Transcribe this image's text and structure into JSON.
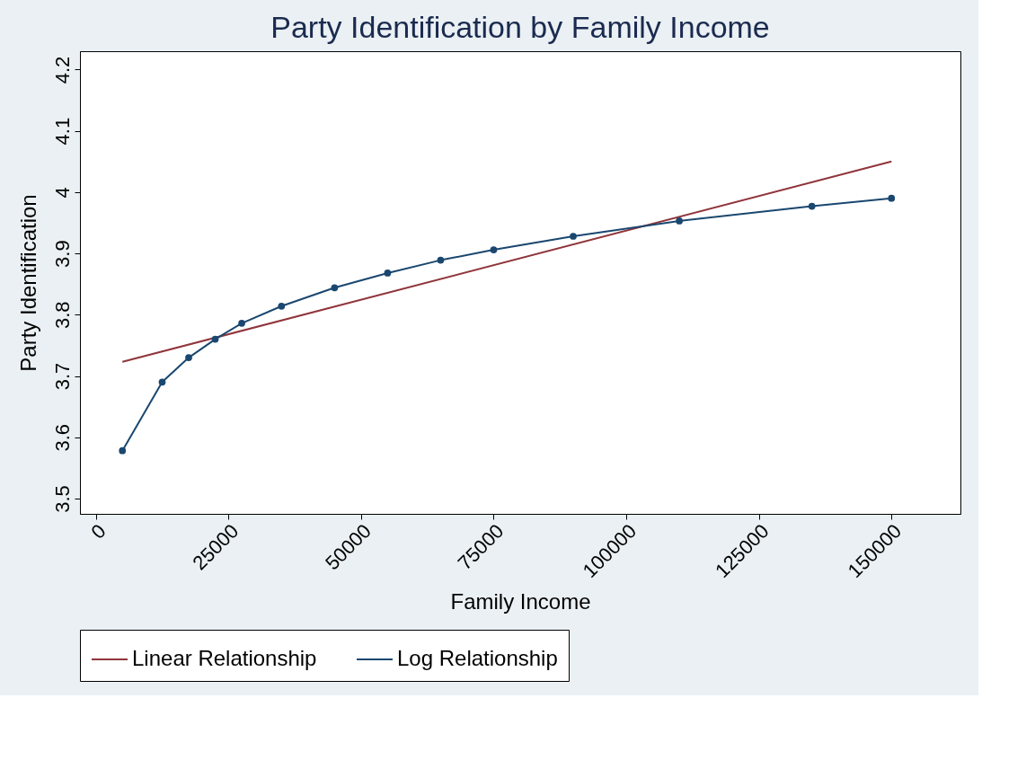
{
  "chart_data": {
    "type": "line",
    "title": "Party Identification by Family Income",
    "xlabel": "Family Income",
    "ylabel": "Party Identification",
    "xlim": [
      -3000,
      163000
    ],
    "xticks": [
      0,
      25000,
      50000,
      75000,
      100000,
      125000,
      150000
    ],
    "ylim": [
      3.475,
      4.23
    ],
    "yticks": [
      3.5,
      3.6,
      3.7,
      3.8,
      3.9,
      4,
      4.1,
      4.2
    ],
    "grid": false,
    "legend": "bottom",
    "marker": "circle",
    "line_style": "solid",
    "series": [
      {
        "name": "Linear Relationship",
        "color": "#90353b",
        "marker": "none",
        "x": [
          5000,
          150000
        ],
        "values": [
          3.723,
          4.05
        ]
      },
      {
        "name": "Log Relationship",
        "color": "#1a476f",
        "x": [
          5000,
          12500,
          17500,
          22500,
          27500,
          35000,
          45000,
          55000,
          65000,
          75000,
          90000,
          110000,
          135000,
          150000
        ],
        "values": [
          3.578,
          3.69,
          3.73,
          3.76,
          3.786,
          3.814,
          3.844,
          3.868,
          3.889,
          3.906,
          3.928,
          3.953,
          3.977,
          3.99
        ]
      }
    ]
  }
}
